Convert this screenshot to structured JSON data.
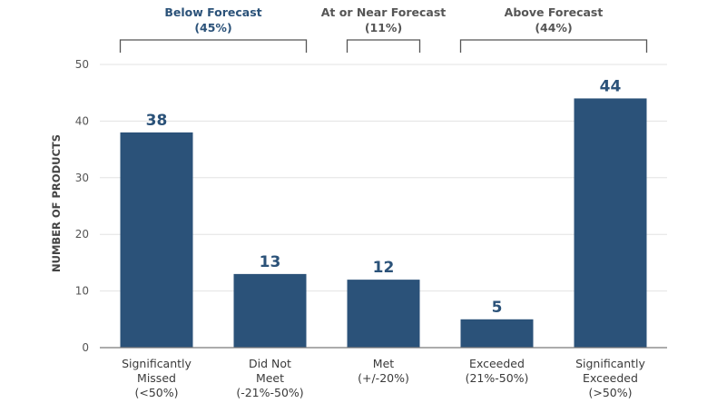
{
  "chart_data": {
    "type": "bar",
    "categories": [
      [
        "Significantly",
        "Missed",
        "(<50%)"
      ],
      [
        "Did Not",
        "Meet",
        "(-21%-50%)"
      ],
      [
        "Met",
        "(+/-20%)"
      ],
      [
        "Exceeded",
        "(21%-50%)"
      ],
      [
        "Significantly",
        "Exceeded",
        "(>50%)"
      ]
    ],
    "values": [
      38,
      13,
      12,
      5,
      44
    ],
    "value_labels": [
      "38",
      "13",
      "12",
      "5",
      "44"
    ],
    "ylabel": "NUMBER OF PRODUCTS",
    "ylim": [
      0,
      50
    ],
    "yticks": [
      0,
      10,
      20,
      30,
      40,
      50
    ],
    "grid": true,
    "bar_color": "#2b5279",
    "groups": [
      {
        "label": "Below Forecast",
        "share": "(45%)",
        "from": 0,
        "to": 1,
        "color": "#2b5279"
      },
      {
        "label": "At or Near Forecast",
        "share": "(11%)",
        "from": 2,
        "to": 2,
        "color": "#555555"
      },
      {
        "label": "Above Forecast",
        "share": "(44%)",
        "from": 3,
        "to": 4,
        "color": "#555555"
      }
    ]
  }
}
